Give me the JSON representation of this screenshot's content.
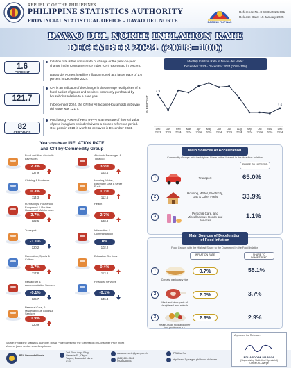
{
  "header": {
    "republic": "REPUBLIC OF THE PHILIPPINES",
    "agency": "PHILIPPINE STATISTICS AUTHORITY",
    "office": "PROVINCIAL STATISTICAL OFFICE - DAVAO DEL NORTE",
    "bp_logo_text": "BAGONG PILIPINAS",
    "reference": "Reference No.: IGEDN2025-001",
    "release": "Release Date: 15 January 2025"
  },
  "title": {
    "line1": "DAVAO DEL NORTE INFLATION RATE",
    "line2": "DECEMBER 2024 (2018=100)"
  },
  "definitions": [
    {
      "value": "1.6",
      "unit": "PERCENT",
      "text1": "Inflation rate is the annual rate of change or the year-on-year change in the Consumer Price Index (CPI) expressed in percent.",
      "text2": "Davao del Norte's headline inflation moved at a faster pace of 1.6 percent in December 2024."
    },
    {
      "value": "121.7",
      "unit": "",
      "text1": "CPI is an indicator of the change in the average retail prices of a fixed basket of goods and services commonly purchased by households relative to a base year.",
      "text2": "In December 2024, the CPI for All Income Households in Davao del Norte was 121.7."
    },
    {
      "value": "82",
      "unit": "CENTAVOS",
      "text1": "Purchasing Power of Peso (PPP) is a measure of the real value of peso in a given period relative to a chosen reference period. One peso in 2018 is worth 82 centavos in December 2024.",
      "text2": ""
    }
  ],
  "chart_data": {
    "type": "line",
    "title_line1": "Monthly Inflation Rate in Davao del Norte:",
    "title_line2": "December 2023 - December 2024 (2018=100)",
    "ylabel": "IN PERCENT",
    "categories": [
      "Dec 2023",
      "Jan 2024",
      "Feb 2024",
      "Mar 2024",
      "Apr 2024",
      "May 2024",
      "Jun 2024",
      "Jul 2024",
      "Aug 2024",
      "Sep 2024",
      "Oct 2024",
      "Nov 2024",
      "Dec 2024"
    ],
    "category_lines": [
      [
        "Dec",
        "2023"
      ],
      [
        "Jan",
        "2024"
      ],
      [
        "Feb",
        "2024"
      ],
      [
        "Mar",
        "2024"
      ],
      [
        "Apr",
        "2024"
      ],
      [
        "May",
        "2024"
      ],
      [
        "Jun",
        "2024"
      ],
      [
        "Jul",
        "2024"
      ],
      [
        "Aug",
        "2024"
      ],
      [
        "Sep",
        "2024"
      ],
      [
        "Oct",
        "2024"
      ],
      [
        "Nov",
        "2024"
      ],
      [
        "Dec",
        "2024"
      ]
    ],
    "values": [
      2.9,
      1.4,
      3.3,
      3.1,
      3.7,
      4.0,
      3.6,
      3.7,
      2.6,
      1.2,
      1.2,
      1.1,
      1.6
    ],
    "labels": [
      "2.9",
      "",
      "",
      "",
      "",
      "",
      "",
      "",
      "",
      "",
      "",
      "",
      "1.6"
    ],
    "ylim": [
      0,
      4.5
    ],
    "line_color": "#1d2a44"
  },
  "yoy": {
    "title_line1": "Year-on-Year INFLATION RATE",
    "title_line2": "and CPI by Commodity Group",
    "items": [
      {
        "name": "Food and Non-Alcoholic Beverages",
        "rate": "2.3%",
        "cpi": "127.9",
        "dir": "up",
        "icon": "food-icon"
      },
      {
        "name": "Alcoholic Beverages & Tobacco",
        "rate": "3.9%",
        "cpi": "163.4",
        "dir": "up",
        "icon": "alcohol-tobacco-icon"
      },
      {
        "name": "Clothing & Footwear",
        "rate": "0.3%",
        "cpi": "114.3",
        "dir": "up",
        "icon": "clothing-icon"
      },
      {
        "name": "Housing, Water, Electricity, Gas & Other Fuels",
        "rate": "1.1%",
        "cpi": "112.6",
        "dir": "up",
        "icon": "housing-icon"
      },
      {
        "name": "Furnishings, Household Equipment & Routine Household Maintenance",
        "rate": "3.7%",
        "cpi": "122.5",
        "dir": "up",
        "icon": "furnishings-icon"
      },
      {
        "name": "Health",
        "rate": "2.7%",
        "cpi": "133.8",
        "dir": "up",
        "icon": "health-icon"
      },
      {
        "name": "Transport",
        "rate": "-1.1%",
        "cpi": "120.2",
        "dir": "down",
        "icon": "transport-icon"
      },
      {
        "name": "Information & Communication",
        "rate": "0%",
        "cpi": "102.2",
        "dir": "none",
        "icon": "communication-icon"
      },
      {
        "name": "Recreation, Sports & Culture",
        "rate": "1.7%",
        "cpi": "117.8",
        "dir": "up",
        "icon": "recreation-icon"
      },
      {
        "name": "Education Services",
        "rate": "0.4%",
        "cpi": "113.6",
        "dir": "up",
        "icon": "education-icon"
      },
      {
        "name": "Restaurant & Accommodation Services",
        "rate": "-0.1%",
        "cpi": "125.7",
        "dir": "down",
        "icon": "restaurant-icon"
      },
      {
        "name": "Financial Services",
        "rate": "-0.1%",
        "cpi": "145.4",
        "dir": "down",
        "icon": "atm-icon"
      },
      {
        "name": "Personal Care, & Miscellaneous Goods & Services",
        "rate": "1.9%",
        "cpi": "120.9",
        "dir": "up",
        "icon": "personal-care-icon"
      }
    ],
    "colors": {
      "up": "#c0392b",
      "down": "#2a3f6e",
      "none": "#2a3f6e"
    }
  },
  "acceleration": {
    "title": "Main Sources of Acceleration",
    "subtitle": "Commodity Groups with the Highest Share to the Uptrend in the Headline Inflation",
    "share_header": "SHARE TO UPTREND",
    "items": [
      {
        "rank": "1",
        "name": "Transport",
        "share": "65.0%",
        "icon": "car-icon"
      },
      {
        "rank": "2",
        "name": "Housing, Water, Electricity, Gas & Other Fuels",
        "share": "33.9%",
        "icon": "house-icon"
      },
      {
        "rank": "3",
        "name": "Personal Care, and Miscellaneous Goods and Services",
        "share": "1.1%",
        "icon": "cosmetics-icon"
      }
    ]
  },
  "deceleration": {
    "title_line1": "Main Sources of Deceleration",
    "title_line2": "of Food Inflation",
    "subtitle": "Food Groups with the Highest Share to the Downtrend in the Food Inflation",
    "rate_header": "INFLATION RATE",
    "share_header": "SHARE TO DOWNTREND",
    "items": [
      {
        "rank": "1",
        "caption": "Cereals, particularly rice",
        "rate": "0.7%",
        "share": "55.1%",
        "icon": "rice-icon"
      },
      {
        "rank": "2",
        "caption": "Meat and other parts of slaughtered land animals",
        "rate": "2.0%",
        "share": "3.7%",
        "icon": "meat-icon"
      },
      {
        "rank": "3",
        "caption": "Ready-made food and other food products n.e.c.",
        "rate": "2.9%",
        "share": "2.9%",
        "icon": "ready-food-icon"
      }
    ]
  },
  "footer": {
    "source": "Source: Philippine Statistics Authority, Retail Price Survey for the Generation of Consumer Price Index",
    "vectors": "Vectors: (such vector: www.freepik.com",
    "pso_name": "PSA Davao del Norte",
    "address1": "2nd Floor Anga Bldg.",
    "address2": "Osmeña St., City of",
    "address3": "Tagum, Davao del Norte",
    "address4": "8100",
    "email": "davaodelnorte@psa.gov.ph",
    "phone1": "(084) 655-9606",
    "phone2": "09283288053",
    "fb": "/PSADavNor",
    "web": "http://rsso11.psa.gov.ph/davao-del-norte",
    "approved": "Approved for Release:",
    "signatory": "EDUARDO M. MARCOS",
    "signatory_title": "(Supervising Statistical Specialist)",
    "signatory_role": "Officer-in-Charge"
  }
}
